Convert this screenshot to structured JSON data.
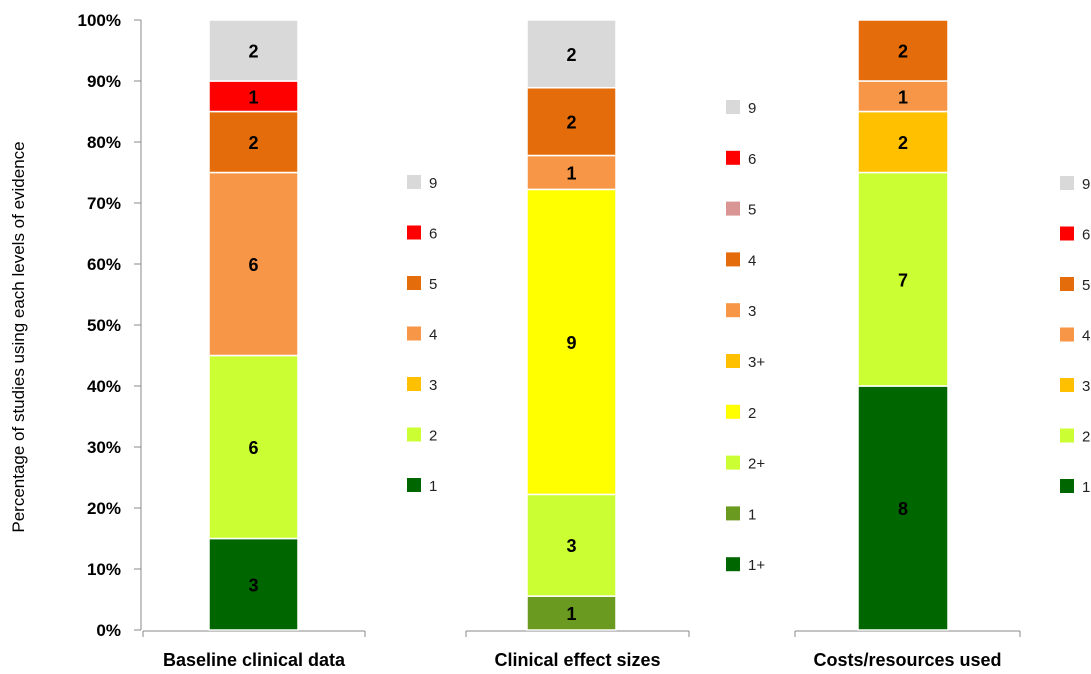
{
  "chart_data": {
    "type": "bar",
    "stacked": true,
    "normalized": true,
    "ylabel": "Percentage of studies using each levels of evidence",
    "yticks": [
      "0%",
      "10%",
      "20%",
      "30%",
      "40%",
      "50%",
      "60%",
      "70%",
      "80%",
      "90%",
      "100%"
    ],
    "ylim": [
      0,
      100
    ],
    "grid": false,
    "colors": {
      "9": "#d9d9d9",
      "6": "#ff0000",
      "5": "#d99594",
      "4": "#e46c0a",
      "3": "#f79646",
      "3+": "#ffc000",
      "2": "#ffff00",
      "2+": "#ccff33",
      "1": "#6a9a1f",
      "1+": "#006600"
    },
    "panels": [
      {
        "category": "Baseline clinical data",
        "legend": [
          "9",
          "6",
          "5",
          "4",
          "3",
          "2",
          "1"
        ],
        "legend_colors": [
          "#d9d9d9",
          "#ff0000",
          "#e46c0a",
          "#f79646",
          "#ffc000",
          "#ccff33",
          "#006600"
        ],
        "segments": [
          {
            "count": "3",
            "percent": 15,
            "color": "#006600"
          },
          {
            "count": "6",
            "percent": 30,
            "color": "#ccff33"
          },
          {
            "count": "6",
            "percent": 30,
            "color": "#f79646"
          },
          {
            "count": "2",
            "percent": 10,
            "color": "#e46c0a"
          },
          {
            "count": "1",
            "percent": 5,
            "color": "#ff0000"
          },
          {
            "count": "2",
            "percent": 10,
            "color": "#d9d9d9"
          }
        ]
      },
      {
        "category": "Clinical effect sizes",
        "legend": [
          "9",
          "6",
          "5",
          "4",
          "3",
          "3+",
          "2",
          "2+",
          "1",
          "1+"
        ],
        "legend_colors": [
          "#d9d9d9",
          "#ff0000",
          "#d99594",
          "#e46c0a",
          "#f79646",
          "#ffc000",
          "#ffff00",
          "#ccff33",
          "#6a9a1f",
          "#006600"
        ],
        "segments": [
          {
            "count": "1",
            "percent": 5.56,
            "color": "#6a9a1f"
          },
          {
            "count": "3",
            "percent": 16.67,
            "color": "#ccff33"
          },
          {
            "count": "9",
            "percent": 50.0,
            "color": "#ffff00"
          },
          {
            "count": "1",
            "percent": 5.56,
            "color": "#f79646"
          },
          {
            "count": "2",
            "percent": 11.11,
            "color": "#e46c0a"
          },
          {
            "count": "2",
            "percent": 11.11,
            "color": "#d9d9d9"
          }
        ]
      },
      {
        "category": "Costs/resources used",
        "legend": [
          "9",
          "6",
          "5",
          "4",
          "3",
          "2",
          "1"
        ],
        "legend_colors": [
          "#d9d9d9",
          "#ff0000",
          "#e46c0a",
          "#f79646",
          "#ffc000",
          "#ccff33",
          "#006600"
        ],
        "segments": [
          {
            "count": "8",
            "percent": 40,
            "color": "#006600"
          },
          {
            "count": "7",
            "percent": 35,
            "color": "#ccff33"
          },
          {
            "count": "2",
            "percent": 10,
            "color": "#ffc000"
          },
          {
            "count": "1",
            "percent": 5,
            "color": "#f79646"
          },
          {
            "count": "2",
            "percent": 10,
            "color": "#e46c0a"
          }
        ]
      }
    ]
  }
}
